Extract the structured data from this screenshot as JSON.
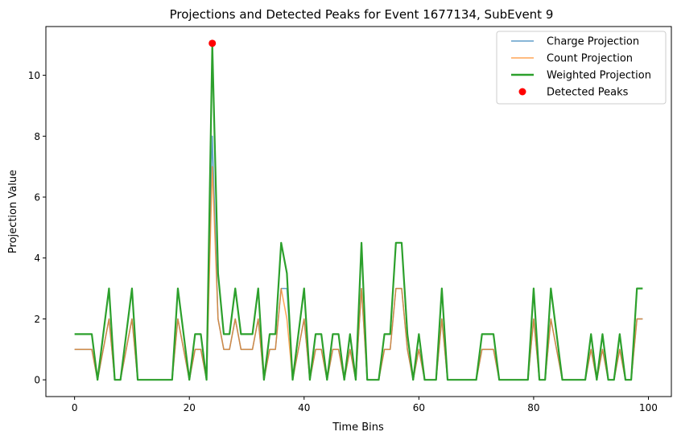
{
  "chart_data": {
    "type": "line",
    "title": "Projections and Detected Peaks for Event 1677134, SubEvent 9",
    "xlabel": "Time Bins",
    "ylabel": "Projection Value",
    "xlim": [
      -5,
      104
    ],
    "ylim": [
      -0.55,
      11.6
    ],
    "xticks": [
      0,
      20,
      40,
      60,
      80,
      100
    ],
    "yticks": [
      0,
      2,
      4,
      6,
      8,
      10
    ],
    "grid": false,
    "legend_position": "upper right",
    "x": [
      0,
      1,
      2,
      3,
      4,
      5,
      6,
      7,
      8,
      9,
      10,
      11,
      12,
      13,
      14,
      15,
      16,
      17,
      18,
      19,
      20,
      21,
      22,
      23,
      24,
      25,
      26,
      27,
      28,
      29,
      30,
      31,
      32,
      33,
      34,
      35,
      36,
      37,
      38,
      39,
      40,
      41,
      42,
      43,
      44,
      45,
      46,
      47,
      48,
      49,
      50,
      51,
      52,
      53,
      54,
      55,
      56,
      57,
      58,
      59,
      60,
      61,
      62,
      63,
      64,
      65,
      66,
      67,
      68,
      69,
      70,
      71,
      72,
      73,
      74,
      75,
      76,
      77,
      78,
      79,
      80,
      81,
      82,
      83,
      84,
      85,
      86,
      87,
      88,
      89,
      90,
      91,
      92,
      93,
      94,
      95,
      96,
      97,
      98,
      99
    ],
    "series": [
      {
        "name": "Charge Projection",
        "color": "#1f77b4",
        "values": [
          1,
          1,
          1,
          1,
          0,
          1,
          2,
          0,
          0,
          1,
          2,
          0,
          0,
          0,
          0,
          0,
          0,
          0,
          2,
          1,
          0,
          1,
          1,
          0,
          8,
          2,
          1,
          1,
          2,
          1,
          1,
          1,
          2,
          0,
          1,
          1,
          3,
          3,
          0,
          1,
          2,
          0,
          1,
          1,
          0,
          1,
          1,
          0,
          1,
          0,
          3,
          0,
          0,
          0,
          1,
          1,
          3,
          3,
          1,
          0,
          1,
          0,
          0,
          0,
          2,
          0,
          0,
          0,
          0,
          0,
          0,
          1,
          1,
          1,
          0,
          0,
          0,
          0,
          0,
          0,
          2,
          0,
          0,
          2,
          1,
          0,
          0,
          0,
          0,
          0,
          1,
          0,
          1,
          0,
          0,
          1,
          0,
          0,
          2,
          2
        ]
      },
      {
        "name": "Count Projection",
        "color": "#ff7f0e",
        "values": [
          1,
          1,
          1,
          1,
          0,
          1,
          2,
          0,
          0,
          1,
          2,
          0,
          0,
          0,
          0,
          0,
          0,
          0,
          2,
          1,
          0,
          1,
          1,
          0,
          7,
          2,
          1,
          1,
          2,
          1,
          1,
          1,
          2,
          0,
          1,
          1,
          3,
          2,
          0,
          1,
          2,
          0,
          1,
          1,
          0,
          1,
          1,
          0,
          1,
          0,
          3,
          0,
          0,
          0,
          1,
          1,
          3,
          3,
          1,
          0,
          1,
          0,
          0,
          0,
          2,
          0,
          0,
          0,
          0,
          0,
          0,
          1,
          1,
          1,
          0,
          0,
          0,
          0,
          0,
          0,
          2,
          0,
          0,
          2,
          1,
          0,
          0,
          0,
          0,
          0,
          1,
          0,
          1,
          0,
          0,
          1,
          0,
          0,
          2,
          2
        ]
      },
      {
        "name": "Weighted Projection",
        "color": "#2ca02c",
        "values": [
          1.5,
          1.5,
          1.5,
          1.5,
          0,
          1.5,
          3,
          0,
          0,
          1.5,
          3,
          0,
          0,
          0,
          0,
          0,
          0,
          0,
          3,
          1.5,
          0,
          1.5,
          1.5,
          0,
          11,
          3.5,
          1.5,
          1.5,
          3,
          1.5,
          1.5,
          1.5,
          3,
          0,
          1.5,
          1.5,
          4.5,
          3.5,
          0,
          1.5,
          3,
          0,
          1.5,
          1.5,
          0,
          1.5,
          1.5,
          0,
          1.5,
          0,
          4.5,
          0,
          0,
          0,
          1.5,
          1.5,
          4.5,
          4.5,
          1.5,
          0,
          1.5,
          0,
          0,
          0,
          3,
          0,
          0,
          0,
          0,
          0,
          0,
          1.5,
          1.5,
          1.5,
          0,
          0,
          0,
          0,
          0,
          0,
          3,
          0,
          0,
          3,
          1.5,
          0,
          0,
          0,
          0,
          0,
          1.5,
          0,
          1.5,
          0,
          0,
          1.5,
          0,
          0,
          3,
          3
        ]
      }
    ],
    "peaks": {
      "name": "Detected Peaks",
      "color": "#ff0000",
      "x": [
        24
      ],
      "y": [
        11.05
      ]
    }
  }
}
